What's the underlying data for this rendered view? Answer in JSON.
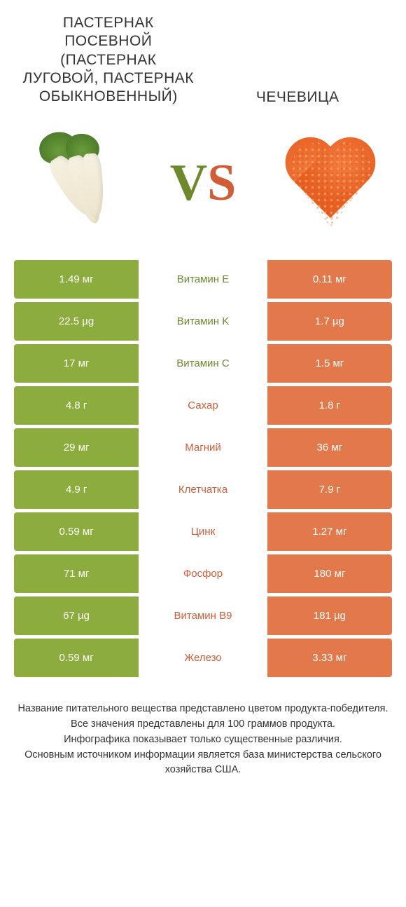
{
  "colors": {
    "left": "#8dac3e",
    "right": "#e3794b",
    "left_text": "#6c8a2b",
    "right_text": "#d05d34",
    "footnote": "#333333"
  },
  "header": {
    "left_title": "ПАСТЕРНАК ПОСЕВНОЙ (ПАСТЕРНАК ЛУГОВОЙ, ПАСТЕРНАК ОБЫКНОВЕННЫЙ)",
    "right_title": "ЧЕЧЕВИЦА"
  },
  "vs": {
    "v": "V",
    "s": "S"
  },
  "rows": [
    {
      "left": "1.49 мг",
      "label": "Витамин E",
      "right": "0.11 мг",
      "winner": "left"
    },
    {
      "left": "22.5 µg",
      "label": "Витамин K",
      "right": "1.7 µg",
      "winner": "left"
    },
    {
      "left": "17 мг",
      "label": "Витамин C",
      "right": "1.5 мг",
      "winner": "left"
    },
    {
      "left": "4.8 г",
      "label": "Сахар",
      "right": "1.8 г",
      "winner": "right"
    },
    {
      "left": "29 мг",
      "label": "Магний",
      "right": "36 мг",
      "winner": "right"
    },
    {
      "left": "4.9 г",
      "label": "Клетчатка",
      "right": "7.9 г",
      "winner": "right"
    },
    {
      "left": "0.59 мг",
      "label": "Цинк",
      "right": "1.27 мг",
      "winner": "right"
    },
    {
      "left": "71 мг",
      "label": "Фосфор",
      "right": "180 мг",
      "winner": "right"
    },
    {
      "left": "67 µg",
      "label": "Витамин B9",
      "right": "181 µg",
      "winner": "right"
    },
    {
      "left": "0.59 мг",
      "label": "Железо",
      "right": "3.33 мг",
      "winner": "right"
    }
  ],
  "footnote": {
    "l1": "Название питательного вещества представлено цветом продукта-победителя.",
    "l2": "Все значения представлены для 100 граммов продукта.",
    "l3": "Инфографика показывает только существенные различия.",
    "l4": "Основным источником информации является база министерства сельского хозяйства США."
  }
}
